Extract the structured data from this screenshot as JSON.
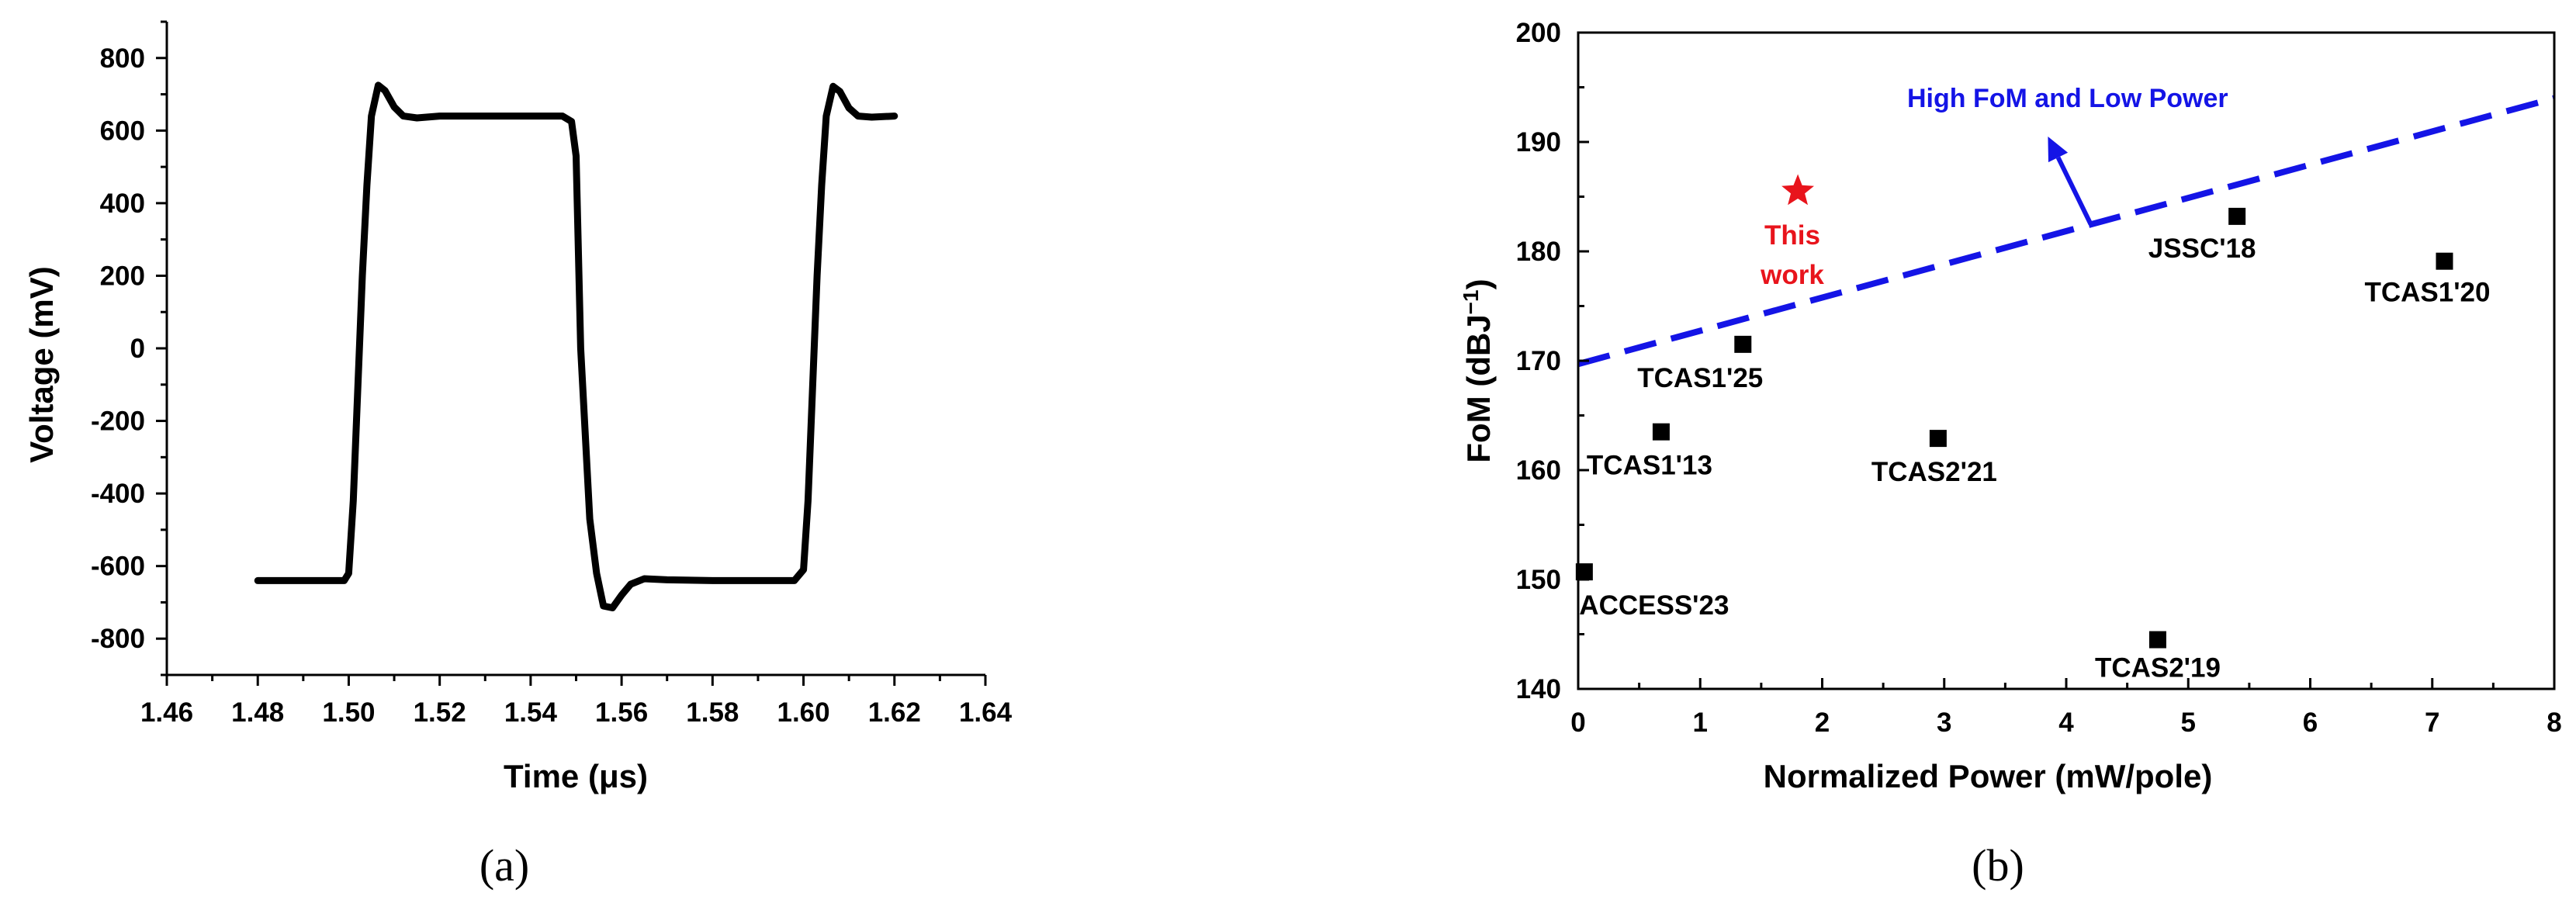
{
  "panels": {
    "a_label": "(a)",
    "b_label": "(b)"
  },
  "chart_data": [
    {
      "type": "line",
      "xlabel": "Time (μs)",
      "ylabel": "Voltage (mV)",
      "xlim": [
        1.46,
        1.64
      ],
      "ylim": [
        -900,
        900
      ],
      "xticks": [
        "1.46",
        "1.48",
        "1.50",
        "1.52",
        "1.54",
        "1.56",
        "1.58",
        "1.60",
        "1.62",
        "1.64"
      ],
      "yticks": [
        "-800",
        "-600",
        "-400",
        "-200",
        "0",
        "200",
        "400",
        "600",
        "800"
      ],
      "xtick_values": [
        1.46,
        1.48,
        1.5,
        1.52,
        1.54,
        1.56,
        1.58,
        1.6,
        1.62,
        1.64
      ],
      "ytick_values": [
        -800,
        -600,
        -400,
        -200,
        0,
        200,
        400,
        600,
        800
      ],
      "color": "#000000",
      "series": [
        {
          "x": [
            1.48,
            1.499,
            1.5,
            1.501,
            1.503,
            1.504,
            1.505,
            1.5065,
            1.508,
            1.51,
            1.512,
            1.515,
            1.52,
            1.53,
            1.54,
            1.547,
            1.549,
            1.55,
            1.551,
            1.553,
            1.5545,
            1.556,
            1.558,
            1.56,
            1.562,
            1.565,
            1.57,
            1.58,
            1.59,
            1.598,
            1.6,
            1.601,
            1.603,
            1.604,
            1.605,
            1.6065,
            1.608,
            1.61,
            1.612,
            1.615,
            1.62
          ],
          "y": [
            -640,
            -640,
            -620,
            -420,
            200,
            450,
            640,
            725,
            710,
            665,
            640,
            635,
            640,
            640,
            640,
            640,
            625,
            530,
            0,
            -470,
            -620,
            -710,
            -715,
            -680,
            -650,
            -635,
            -638,
            -640,
            -640,
            -640,
            -610,
            -420,
            200,
            450,
            640,
            722,
            708,
            662,
            640,
            637,
            640
          ]
        }
      ]
    },
    {
      "type": "scatter",
      "xlabel": "Normalized Power (mW/pole)",
      "ylabel": "FoM (dBJ⁻¹)",
      "xlim": [
        0,
        8
      ],
      "ylim": [
        140,
        200
      ],
      "xticks": [
        "0",
        "1",
        "2",
        "3",
        "4",
        "5",
        "6",
        "7",
        "8"
      ],
      "yticks": [
        "140",
        "150",
        "160",
        "170",
        "180",
        "190",
        "200"
      ],
      "xtick_values": [
        0,
        1,
        2,
        3,
        4,
        5,
        6,
        7,
        8
      ],
      "ytick_values": [
        140,
        150,
        160,
        170,
        180,
        190,
        200
      ],
      "points": [
        {
          "label": "ACCESS'23",
          "x": 0.05,
          "y": 150.7
        },
        {
          "label": "TCAS1'13",
          "x": 0.68,
          "y": 163.5
        },
        {
          "label": "TCAS1'25",
          "x": 1.35,
          "y": 171.5
        },
        {
          "label": "TCAS2'21",
          "x": 2.95,
          "y": 162.9
        },
        {
          "label": "TCAS2'19",
          "x": 4.75,
          "y": 144.5
        },
        {
          "label": "JSSC'18",
          "x": 5.4,
          "y": 183.2
        },
        {
          "label": "TCAS1'20",
          "x": 7.1,
          "y": 179.1
        }
      ],
      "this_work": {
        "label_line1": "This",
        "label_line2": "work",
        "x": 1.8,
        "y": 185.5,
        "color": "#e8141c"
      },
      "trend_line": {
        "x": [
          0,
          8
        ],
        "y": [
          169.7,
          194
        ],
        "color": "#1414e6"
      },
      "annotation": {
        "text": "High FoM and Low Power",
        "color": "#1414e6"
      },
      "arrow": {
        "from": [
          4.2,
          182.5
        ],
        "to": [
          3.85,
          190.5
        ]
      }
    }
  ]
}
